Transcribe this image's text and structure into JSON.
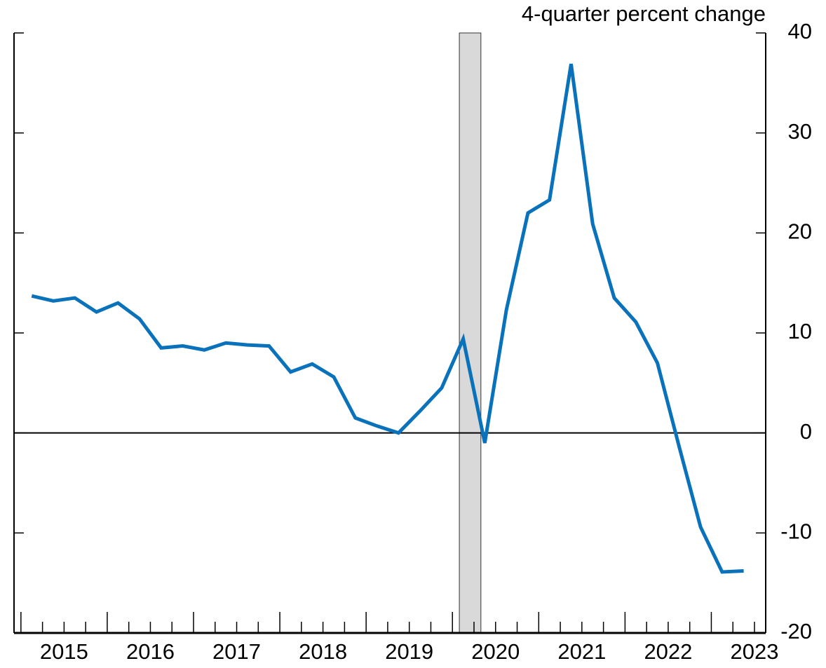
{
  "chart_data": {
    "type": "line",
    "y_label": "4-quarter percent change",
    "x": [
      2015.125,
      2015.375,
      2015.625,
      2015.875,
      2016.125,
      2016.375,
      2016.625,
      2016.875,
      2017.125,
      2017.375,
      2017.625,
      2017.875,
      2018.125,
      2018.375,
      2018.625,
      2018.875,
      2019.125,
      2019.375,
      2019.625,
      2019.875,
      2020.125,
      2020.375,
      2020.625,
      2020.875,
      2021.125,
      2021.375,
      2021.625,
      2021.875,
      2022.125,
      2022.375,
      2022.625,
      2022.875,
      2023.125,
      2023.375
    ],
    "series": [
      {
        "color": "#0a72ba",
        "values": [
          13.7,
          13.2,
          13.5,
          12.1,
          13.0,
          11.4,
          8.5,
          8.7,
          8.3,
          9.0,
          8.8,
          8.7,
          6.1,
          6.9,
          5.6,
          1.5,
          0.7,
          0.0,
          2.2,
          4.5,
          9.4,
          -1.0,
          12.3,
          22.0,
          23.3,
          36.9,
          20.9,
          13.5,
          11.1,
          7.0,
          -1.3,
          -9.4,
          -13.9,
          -13.8
        ]
      }
    ],
    "shading": [
      2020.08,
      2020.33
    ],
    "xlim": [
      2014.92,
      2023.63
    ],
    "xticks": [
      {
        "value": 2015,
        "label": "2015"
      },
      {
        "value": 2016,
        "label": "2016"
      },
      {
        "value": 2017,
        "label": "2017"
      },
      {
        "value": 2018,
        "label": "2018"
      },
      {
        "value": 2019,
        "label": "2019"
      },
      {
        "value": 2020,
        "label": "2020"
      },
      {
        "value": 2021,
        "label": "2021"
      },
      {
        "value": 2022,
        "label": "2022"
      },
      {
        "value": 2023,
        "label": "2023"
      }
    ],
    "ylim": [
      -20,
      40
    ],
    "yticks": [
      -20,
      -10,
      0,
      10,
      20,
      30,
      40
    ],
    "zero_line": true
  }
}
